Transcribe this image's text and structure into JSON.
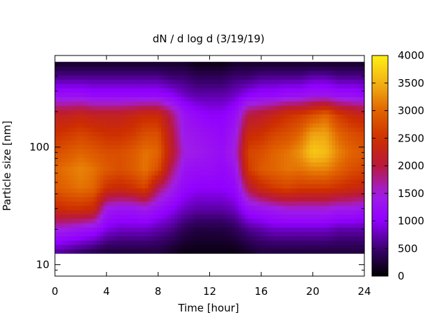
{
  "chart_data": {
    "type": "heatmap",
    "title": "dN / d log d (3/19/19)",
    "xlabel": "Time [hour]",
    "ylabel": "Particle size [nm]",
    "x_range": [
      0,
      24
    ],
    "x_ticks": [
      0,
      4,
      8,
      12,
      16,
      20,
      24
    ],
    "y_scale": "log",
    "y_range_nm": [
      8,
      600
    ],
    "y_ticks": [
      10,
      100
    ],
    "data_y_range_nm": [
      12.5,
      530
    ],
    "colorbar": {
      "palette": "black-purple-red-orange-yellow",
      "range": [
        0,
        4000
      ],
      "ticks": [
        0,
        500,
        1000,
        1500,
        2000,
        2500,
        3000,
        3500,
        4000
      ]
    },
    "diameter_nm": [
      13,
      20,
      30,
      45,
      65,
      90,
      130,
      190,
      280,
      400,
      520
    ],
    "time_hour": [
      0,
      1,
      2,
      3,
      4,
      5,
      6,
      7,
      8,
      9,
      10,
      11,
      12,
      13,
      14,
      15,
      16,
      17,
      18,
      19,
      20,
      21,
      22,
      23,
      24
    ],
    "dNdlogd": [
      [
        700,
        1500,
        2400,
        2900,
        3000,
        2800,
        2500,
        2200,
        1200,
        600,
        200
      ],
      [
        600,
        1400,
        2500,
        3000,
        3100,
        2900,
        2600,
        2200,
        1200,
        600,
        200
      ],
      [
        500,
        1300,
        2500,
        3100,
        3200,
        3000,
        2700,
        2300,
        1200,
        600,
        200
      ],
      [
        400,
        1200,
        2400,
        3000,
        3100,
        2900,
        2600,
        2200,
        1100,
        600,
        200
      ],
      [
        300,
        900,
        1400,
        2500,
        2900,
        2800,
        2500,
        2200,
        1100,
        600,
        200
      ],
      [
        300,
        800,
        1300,
        2400,
        2800,
        2800,
        2500,
        2200,
        1100,
        600,
        200
      ],
      [
        300,
        800,
        1300,
        2500,
        2900,
        2900,
        2600,
        2300,
        1100,
        600,
        200
      ],
      [
        300,
        800,
        1400,
        2700,
        3100,
        3100,
        2800,
        2400,
        1100,
        600,
        200
      ],
      [
        300,
        700,
        1200,
        1900,
        2800,
        3000,
        2800,
        2400,
        1100,
        600,
        200
      ],
      [
        200,
        600,
        1000,
        1500,
        1900,
        2200,
        2100,
        1900,
        1000,
        500,
        200
      ],
      [
        100,
        400,
        800,
        1100,
        1300,
        1500,
        1400,
        1300,
        800,
        500,
        200
      ],
      [
        100,
        300,
        700,
        1000,
        1200,
        1400,
        1300,
        1100,
        700,
        400,
        100
      ],
      [
        100,
        300,
        700,
        1000,
        1200,
        1300,
        1200,
        1000,
        700,
        400,
        100
      ],
      [
        100,
        300,
        700,
        1000,
        1100,
        1200,
        1100,
        1000,
        700,
        400,
        100
      ],
      [
        100,
        400,
        800,
        1100,
        1300,
        1500,
        1400,
        1200,
        800,
        500,
        200
      ],
      [
        200,
        600,
        1200,
        2000,
        2600,
        2700,
        2400,
        2000,
        1000,
        500,
        200
      ],
      [
        300,
        700,
        1300,
        2400,
        2900,
        2800,
        2500,
        2100,
        1100,
        600,
        200
      ],
      [
        300,
        800,
        1400,
        2600,
        3000,
        3000,
        2700,
        2300,
        1100,
        600,
        200
      ],
      [
        300,
        800,
        1500,
        2700,
        3100,
        3100,
        2800,
        2500,
        1200,
        600,
        200
      ],
      [
        300,
        800,
        1500,
        2600,
        3100,
        3300,
        3000,
        2600,
        1200,
        600,
        200
      ],
      [
        300,
        800,
        1500,
        2600,
        3200,
        3700,
        3400,
        2800,
        1300,
        700,
        200
      ],
      [
        300,
        800,
        1500,
        2600,
        3200,
        3600,
        3400,
        3000,
        1300,
        700,
        200
      ],
      [
        300,
        700,
        1400,
        2500,
        3000,
        3200,
        3000,
        2600,
        1200,
        600,
        200
      ],
      [
        300,
        700,
        1400,
        2400,
        2800,
        3000,
        2800,
        2400,
        1200,
        600,
        200
      ],
      [
        300,
        700,
        1300,
        2300,
        2700,
        2900,
        2700,
        2300,
        1100,
        600,
        200
      ]
    ]
  }
}
